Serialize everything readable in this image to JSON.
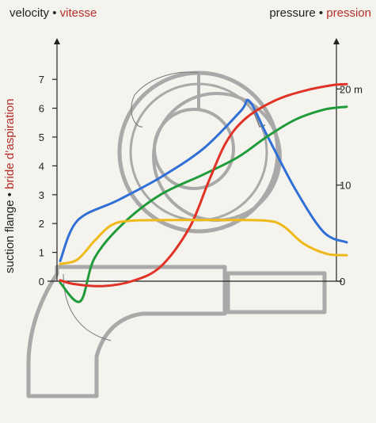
{
  "header": {
    "left_en": "velocity",
    "left_sep": "•",
    "left_fr": "vitesse",
    "right_en": "pressure",
    "right_sep": "•",
    "right_fr": "pression"
  },
  "side_label": {
    "en": "suction flange",
    "sep": "•",
    "fr": "bride d’aspiration"
  },
  "chart_data": {
    "type": "line",
    "x_range": [
      0,
      1
    ],
    "left_axis": {
      "ticks": [
        0,
        1,
        2,
        3,
        4,
        5,
        6,
        7
      ],
      "ylim": [
        0,
        7.6
      ]
    },
    "right_axis": {
      "ticks": [
        0,
        10,
        20
      ],
      "tick_labels": [
        "0",
        "10",
        "20 m"
      ],
      "ylim": [
        0,
        22.8
      ]
    },
    "series": [
      {
        "color": "#2f6fd6",
        "axis": "left",
        "x": [
          0,
          0.06,
          0.2,
          0.35,
          0.5,
          0.63,
          0.66,
          0.72,
          0.82,
          0.92,
          1.0
        ],
        "y": [
          0.7,
          2.1,
          2.8,
          3.6,
          4.6,
          5.9,
          6.25,
          5.1,
          3.2,
          1.7,
          1.35
        ]
      },
      {
        "color": "#1f9b3a",
        "axis": "left",
        "x": [
          0,
          0.07,
          0.12,
          0.22,
          0.35,
          0.5,
          0.62,
          0.72,
          0.82,
          0.92,
          1.0
        ],
        "y": [
          -0.05,
          -0.7,
          0.8,
          2.0,
          3.0,
          3.7,
          4.3,
          5.0,
          5.6,
          5.95,
          6.05
        ]
      },
      {
        "color": "#e13226",
        "axis": "right",
        "x": [
          0,
          0.05,
          0.15,
          0.25,
          0.35,
          0.45,
          0.52,
          0.58,
          0.65,
          0.75,
          0.85,
          0.95,
          1.0
        ],
        "y": [
          0.1,
          -0.3,
          -0.5,
          0.0,
          1.5,
          5.5,
          10.5,
          14.5,
          17.0,
          18.8,
          19.8,
          20.4,
          20.5
        ]
      },
      {
        "color": "#f0b91a",
        "axis": "left",
        "x": [
          0,
          0.06,
          0.12,
          0.18,
          0.25,
          0.4,
          0.55,
          0.72,
          0.78,
          0.85,
          0.93,
          1.0
        ],
        "y": [
          0.6,
          0.75,
          1.4,
          1.95,
          2.1,
          2.12,
          2.12,
          2.1,
          1.9,
          1.3,
          0.95,
          0.9
        ]
      }
    ]
  }
}
